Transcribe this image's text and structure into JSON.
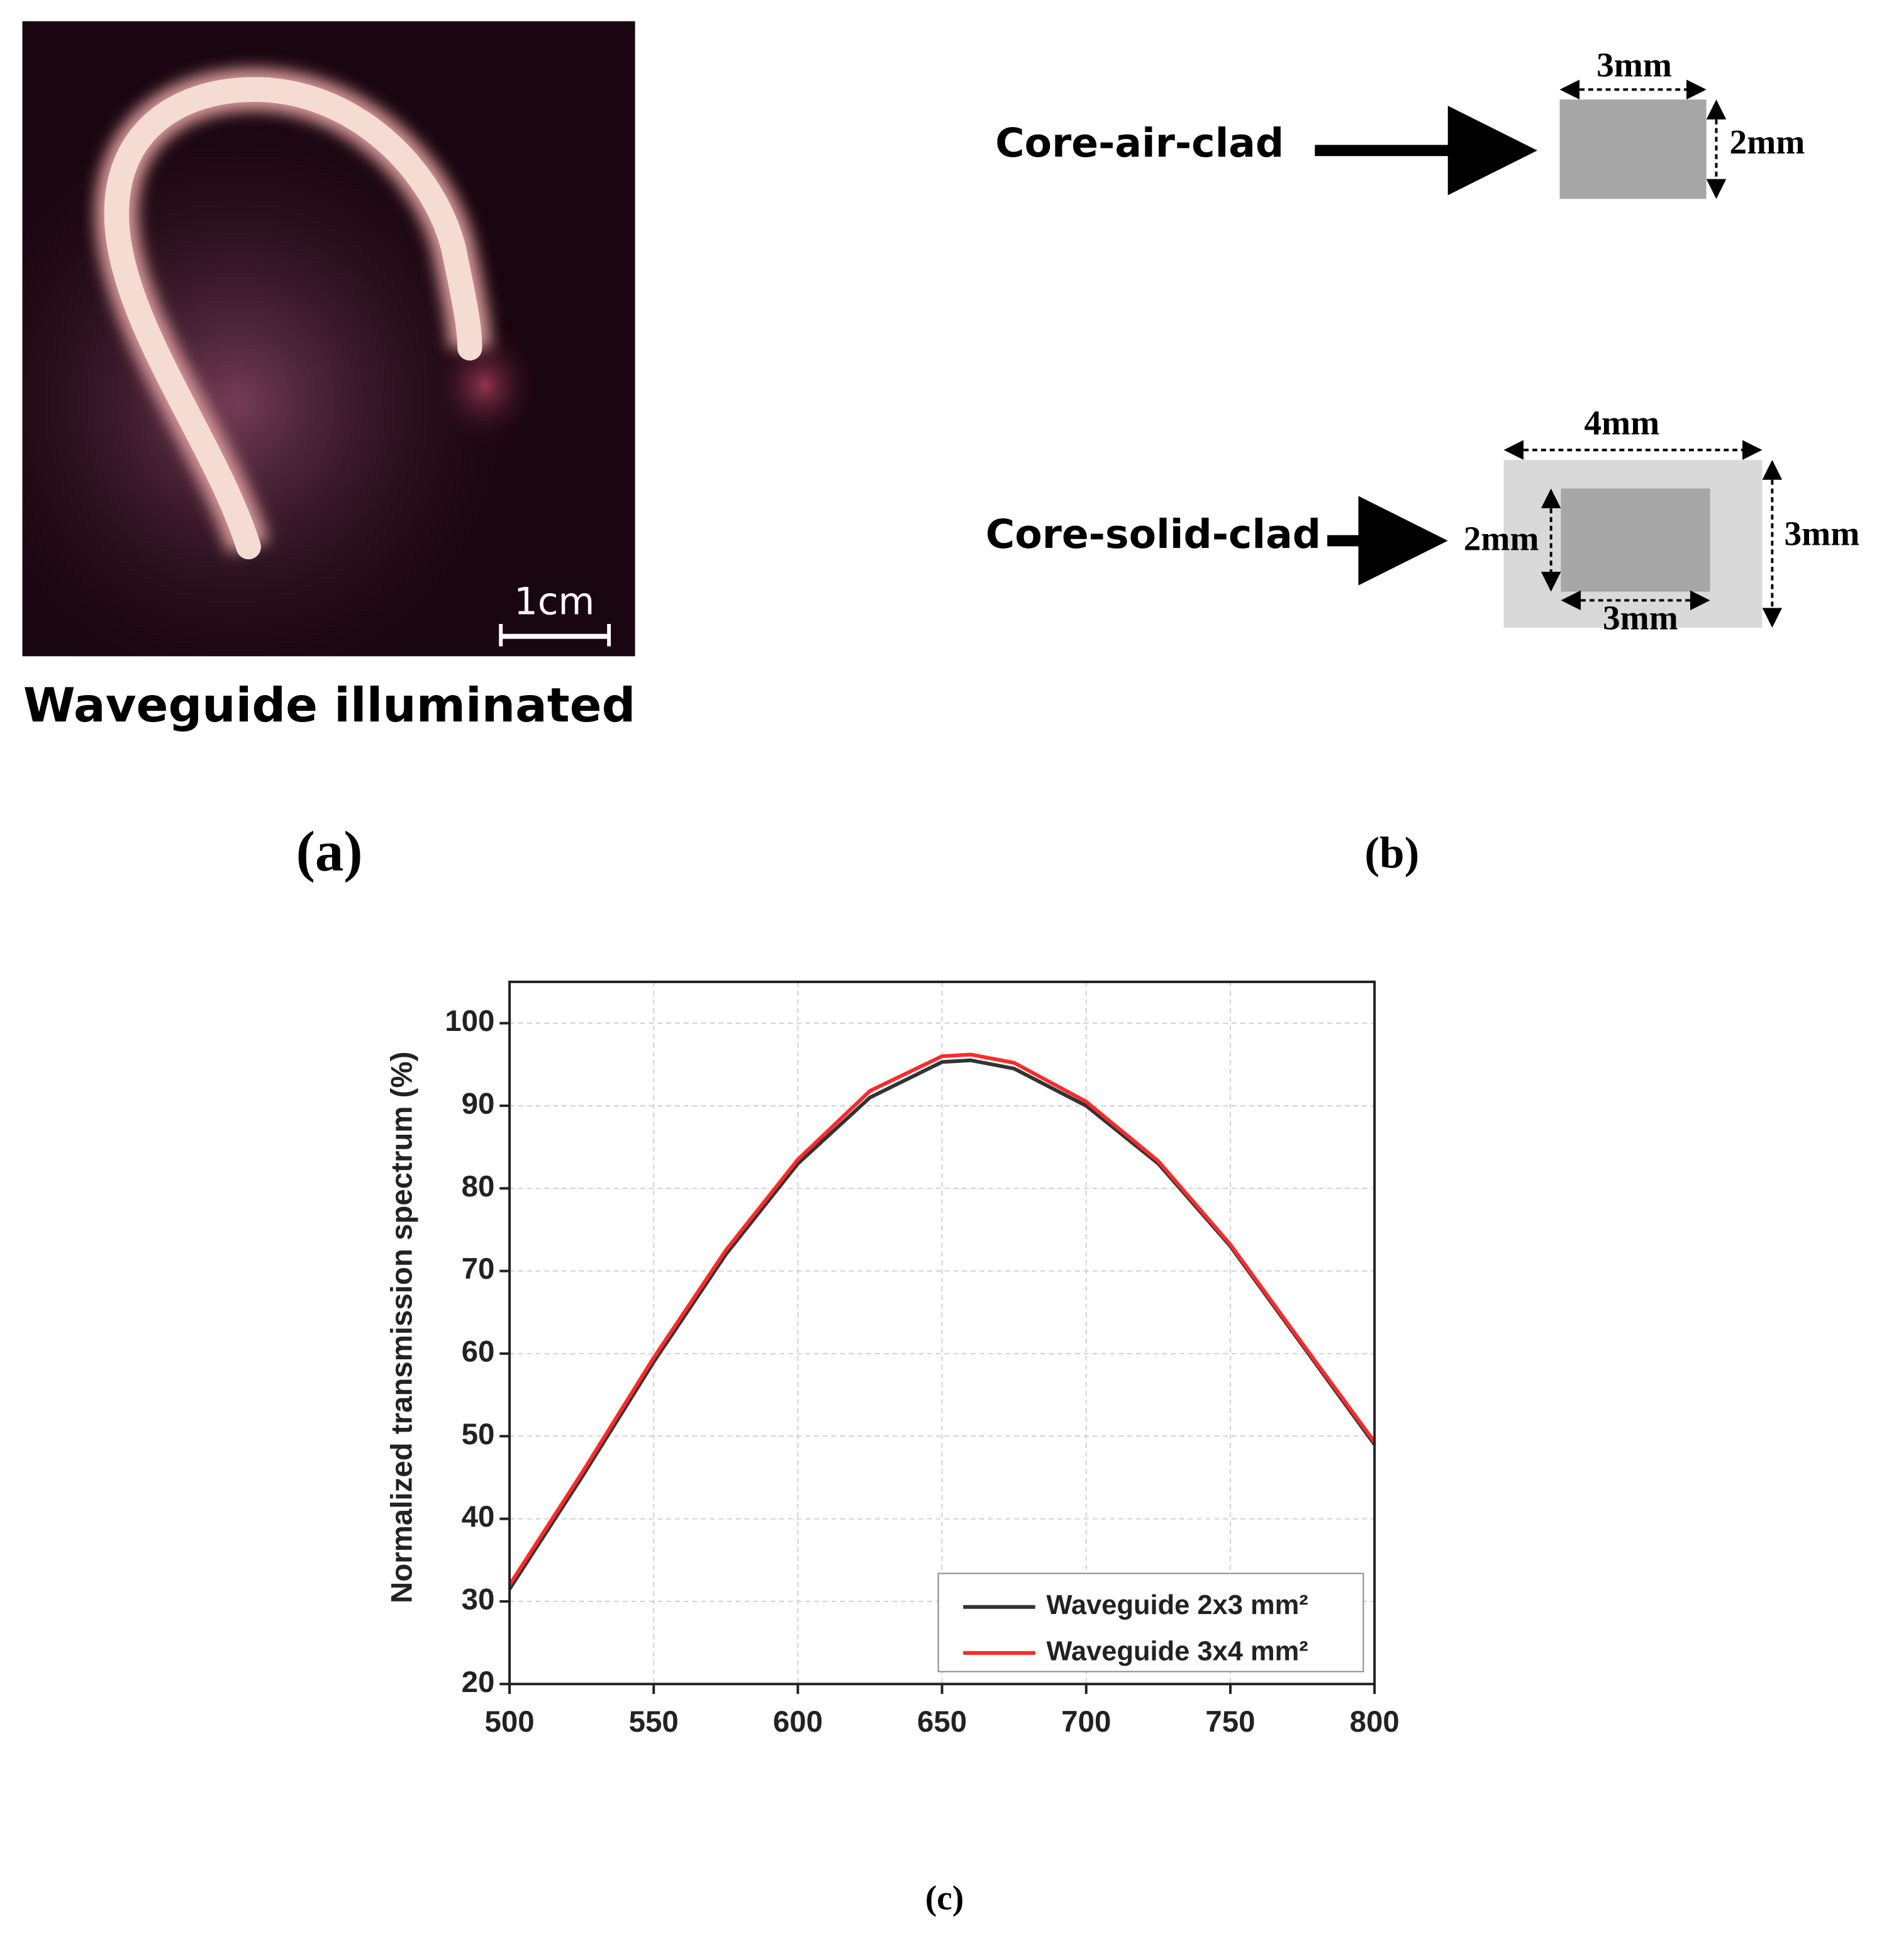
{
  "panel_a": {
    "scale_label": "1cm",
    "caption": "Waveguide illuminated",
    "label": "(a)"
  },
  "panel_b": {
    "core_air_clad": {
      "name": "Core-air-clad",
      "width": "3mm",
      "height": "2mm"
    },
    "core_solid_clad": {
      "name": "Core-solid-clad",
      "outer_width": "4mm",
      "outer_height": "3mm",
      "inner_height": "2mm",
      "inner_width": "3mm"
    },
    "label": "(b)"
  },
  "chart_data": {
    "type": "line",
    "y_label": "Normalized transmission spectrum (%)",
    "caption": "(c)",
    "x": [
      500,
      525,
      550,
      575,
      600,
      625,
      650,
      660,
      675,
      700,
      725,
      750,
      775,
      800
    ],
    "series": [
      {
        "name": "Waveguide 2x3 mm²",
        "color": "#333333",
        "values": [
          31.5,
          45,
          59,
          72,
          83,
          91,
          95.3,
          95.5,
          94.5,
          90,
          83,
          73,
          61,
          49
        ]
      },
      {
        "name": "Waveguide 3x4 mm²",
        "color": "#ff2a2a",
        "values": [
          32,
          45.5,
          59.5,
          72.5,
          83.5,
          91.8,
          96,
          96.2,
          95.2,
          90.5,
          83.3,
          73.2,
          61.2,
          49.3
        ]
      }
    ],
    "xlim": [
      500,
      800
    ],
    "ylim": [
      20,
      105
    ],
    "xticks": [
      500,
      550,
      600,
      650,
      700,
      750,
      800
    ],
    "yticks": [
      20,
      30,
      40,
      50,
      60,
      70,
      80,
      90,
      100
    ],
    "grid": true,
    "legend": "lower-right"
  }
}
